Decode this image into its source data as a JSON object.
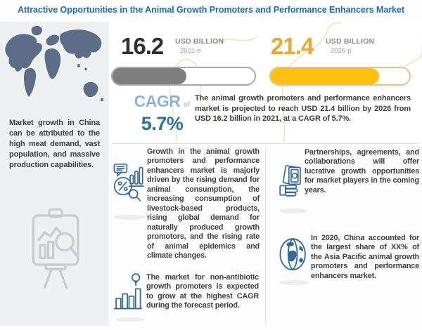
{
  "title": "Attractive Opportunities in the Animal Growth Promoters and Performance Enhancers Market",
  "sidebar": {
    "note": "Market growth in China can be attributed to the high meat demand, vast population, and massive production capabilities."
  },
  "stats": {
    "current": {
      "value": "16.2",
      "unit": "USD BILLION",
      "period": "2021-e",
      "bar_pct": 52
    },
    "projected": {
      "value": "21.4",
      "unit": "USD BILLION",
      "period": "2026-p",
      "bar_pct": 78
    },
    "cagr": {
      "label": "CAGR",
      "of": "of",
      "value": "5.7%"
    },
    "summary": "The animal growth promoters and performance enhancers market is projected to reach USD 21.4 billion by 2026 from USD 16.2 billion in 2021, at a CAGR of 5.7%."
  },
  "insights": {
    "drivers": "Growth in the animal growth promoters and performance enhancers market is majorly driven by the rising demand for animal consumption, the increasing consumption of livestock-based products, rising global demand for naturally produced growth promotors, and the rising rate of animal epidemics and climate changes.",
    "non_antibiotic": "The market for non-antibiotic growth promoters is expected to grow at the highest CAGR during the forecast period.",
    "partnerships": "Partnerships, agreements, and collaborations will offer lucrative growth opportunities for market players in the coming years.",
    "china_share": "In 2020, China accounted for the largest share of XX% of the Asia Pacific animal growth promoters and performance enhancers market."
  },
  "colors": {
    "title_blue": "#1E6CB5",
    "number_dark": "#303030",
    "gray_bar_fill": "#7E7E7E",
    "gray_bar_border": "#A9A9A9",
    "yellow_bar_fill": "#FFC010",
    "yellow_bar_border": "#E3C47E",
    "yellow_number": "#EBA832",
    "cagr_light_blue": "#8FB2D4",
    "cagr_blue": "#2F6EA8",
    "icon_blue": "#36699B",
    "body_text": "#3E3E3E",
    "sidebar_bg": "#EEF0F2",
    "map_fill": "#5C6D88"
  }
}
